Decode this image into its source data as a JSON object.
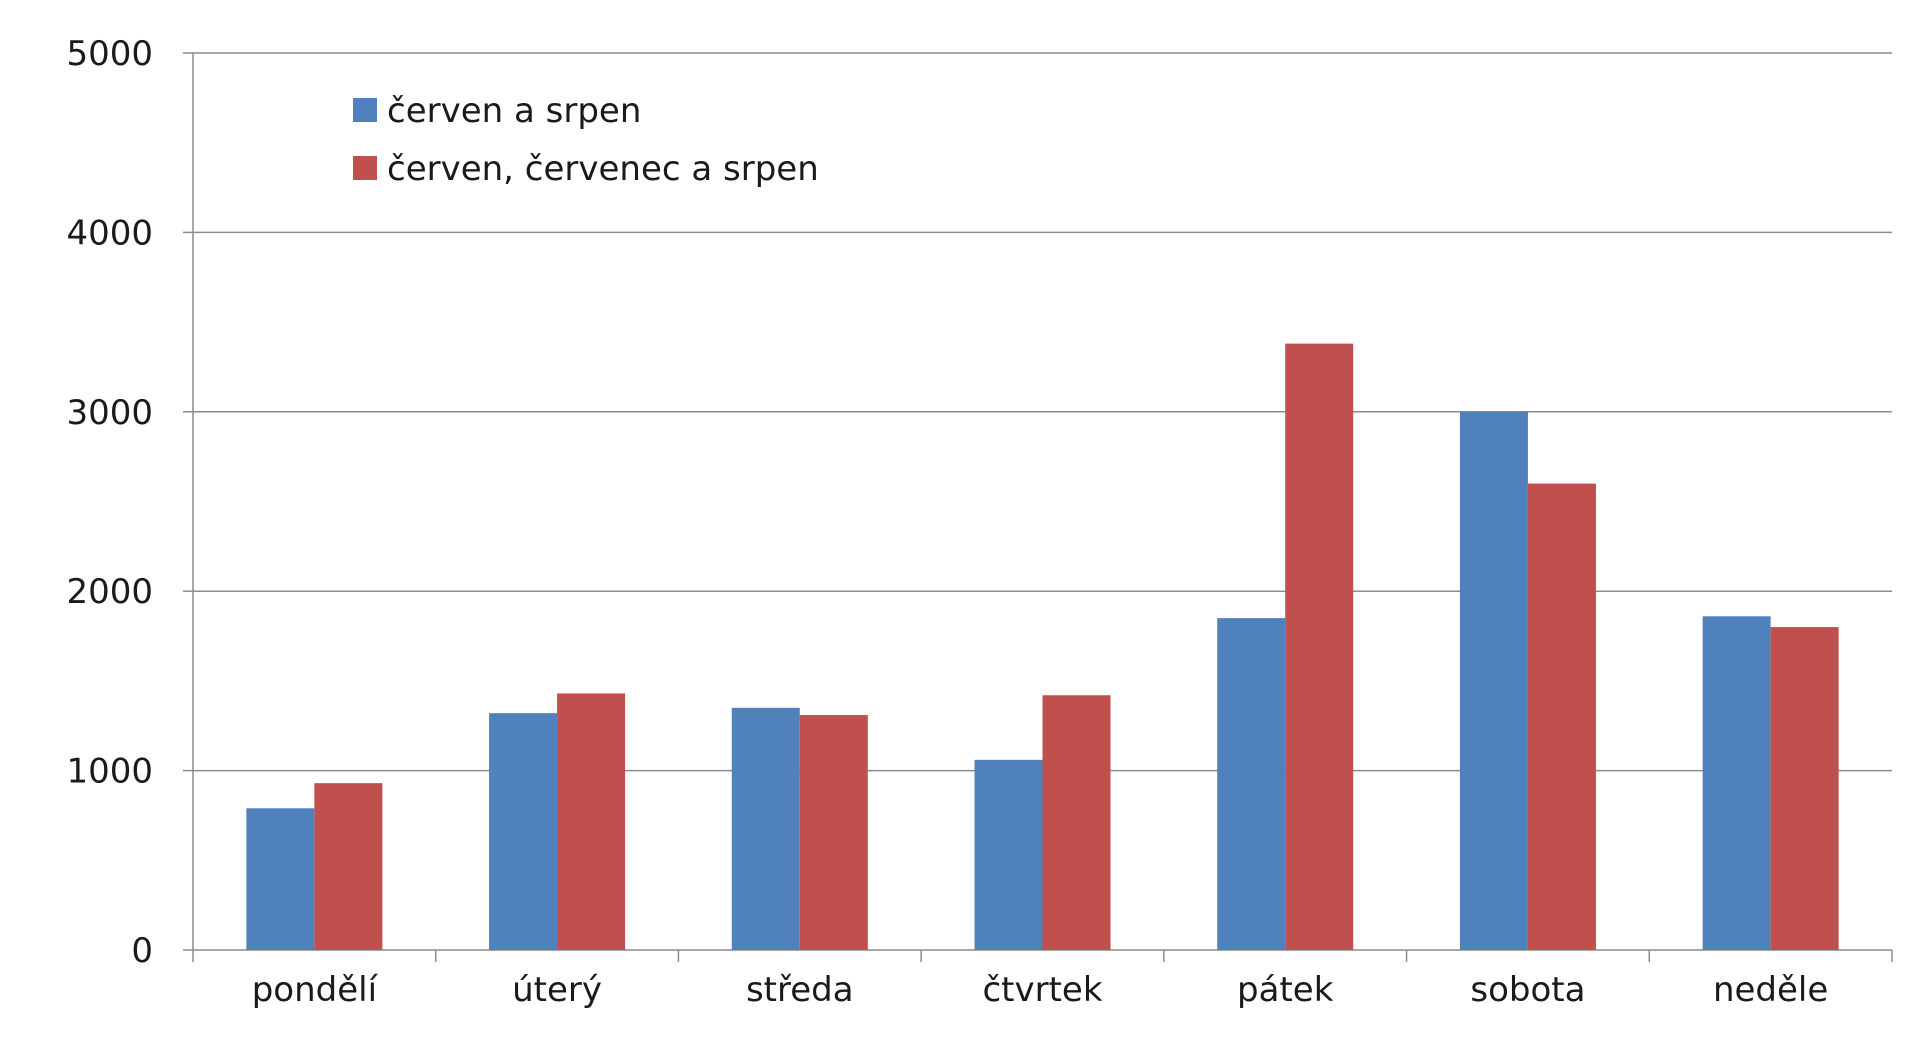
{
  "colors": {
    "series_1": "#4f81bd",
    "series_2": "#c0504d",
    "grid": "#8c8c8c",
    "text": "#1a1a1a",
    "background": "#ffffff"
  },
  "chart_data": {
    "type": "bar",
    "title": "",
    "xlabel": "",
    "ylabel": "",
    "ylim": [
      0,
      5000
    ],
    "yticks": [
      "0",
      "1000",
      "2000",
      "3000",
      "4000",
      "5000"
    ],
    "grid": true,
    "legend_position": "top-left",
    "categories": [
      "pondělí",
      "úterý",
      "středa",
      "čtvrtek",
      "pátek",
      "sobota",
      "neděle"
    ],
    "series": [
      {
        "name": "červen a srpen",
        "color": "#4f81bd",
        "values": [
          790,
          1320,
          1350,
          1060,
          1850,
          3000,
          1860
        ]
      },
      {
        "name": "červen, červenec a srpen",
        "color": "#c0504d",
        "values": [
          930,
          1430,
          1310,
          1420,
          3380,
          2600,
          1800
        ]
      }
    ]
  }
}
